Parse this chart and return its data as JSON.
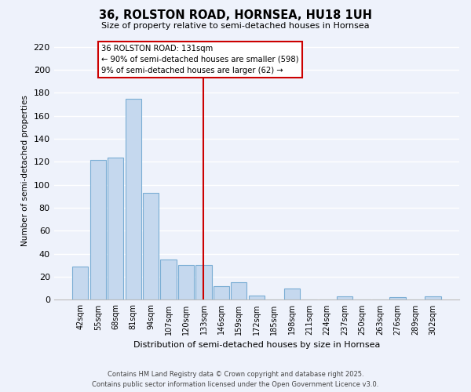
{
  "title": "36, ROLSTON ROAD, HORNSEA, HU18 1UH",
  "subtitle": "Size of property relative to semi-detached houses in Hornsea",
  "xlabel": "Distribution of semi-detached houses by size in Hornsea",
  "ylabel": "Number of semi-detached properties",
  "categories": [
    "42sqm",
    "55sqm",
    "68sqm",
    "81sqm",
    "94sqm",
    "107sqm",
    "120sqm",
    "133sqm",
    "146sqm",
    "159sqm",
    "172sqm",
    "185sqm",
    "198sqm",
    "211sqm",
    "224sqm",
    "237sqm",
    "250sqm",
    "263sqm",
    "276sqm",
    "289sqm",
    "302sqm"
  ],
  "values": [
    29,
    122,
    124,
    175,
    93,
    35,
    30,
    30,
    12,
    15,
    4,
    0,
    10,
    0,
    0,
    3,
    0,
    0,
    2,
    0,
    3
  ],
  "bar_color": "#c5d8ee",
  "bar_edge_color": "#7aadd4",
  "highlight_index": 7,
  "highlight_color": "#cc0000",
  "annotation_title": "36 ROLSTON ROAD: 131sqm",
  "annotation_line1": "← 90% of semi-detached houses are smaller (598)",
  "annotation_line2": "9% of semi-detached houses are larger (62) →",
  "ylim": [
    0,
    225
  ],
  "yticks": [
    0,
    20,
    40,
    60,
    80,
    100,
    120,
    140,
    160,
    180,
    200,
    220
  ],
  "footer_line1": "Contains HM Land Registry data © Crown copyright and database right 2025.",
  "footer_line2": "Contains public sector information licensed under the Open Government Licence v3.0.",
  "bg_color": "#eef2fb",
  "grid_color": "#ffffff"
}
